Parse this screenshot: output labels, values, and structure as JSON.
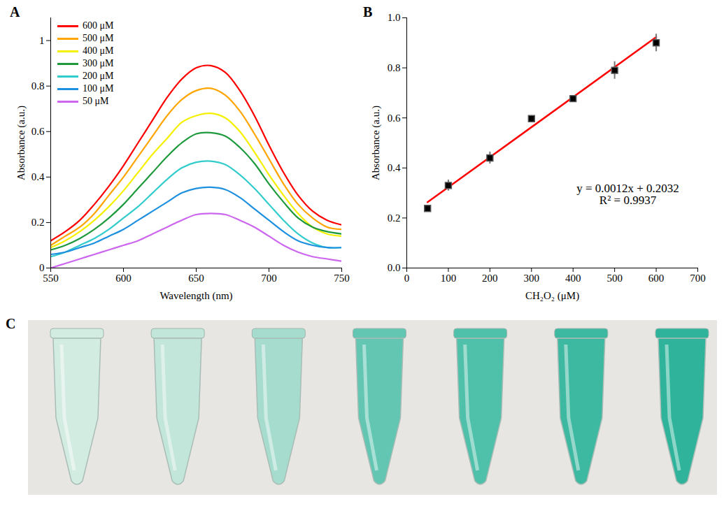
{
  "chart_data": [
    {
      "panel": "A",
      "type": "line",
      "x_label": "Wavelength (nm)",
      "y_label": "Absorbance (a.u.)",
      "x": [
        550,
        560,
        570,
        580,
        590,
        600,
        610,
        620,
        630,
        640,
        650,
        660,
        670,
        680,
        690,
        700,
        710,
        720,
        730,
        740,
        750
      ],
      "series": [
        {
          "name": "600 μM",
          "color": "#ff0000",
          "values": [
            0.12,
            0.16,
            0.21,
            0.28,
            0.36,
            0.45,
            0.55,
            0.65,
            0.75,
            0.83,
            0.88,
            0.89,
            0.86,
            0.78,
            0.67,
            0.54,
            0.42,
            0.32,
            0.25,
            0.21,
            0.19
          ]
        },
        {
          "name": "500 μM",
          "color": "#ffa500",
          "values": [
            0.1,
            0.14,
            0.18,
            0.24,
            0.32,
            0.4,
            0.49,
            0.58,
            0.67,
            0.74,
            0.78,
            0.79,
            0.76,
            0.69,
            0.59,
            0.48,
            0.37,
            0.28,
            0.22,
            0.18,
            0.17
          ]
        },
        {
          "name": "400 μM",
          "color": "#f5f000",
          "values": [
            0.09,
            0.12,
            0.16,
            0.21,
            0.27,
            0.34,
            0.42,
            0.5,
            0.57,
            0.64,
            0.67,
            0.68,
            0.66,
            0.6,
            0.51,
            0.41,
            0.32,
            0.24,
            0.18,
            0.15,
            0.14
          ]
        },
        {
          "name": "300 μM",
          "color": "#1e9a3c",
          "values": [
            0.08,
            0.1,
            0.13,
            0.17,
            0.22,
            0.28,
            0.35,
            0.42,
            0.49,
            0.55,
            0.59,
            0.595,
            0.58,
            0.53,
            0.46,
            0.37,
            0.29,
            0.22,
            0.18,
            0.16,
            0.15
          ]
        },
        {
          "name": "200 μM",
          "color": "#33cccc",
          "values": [
            0.05,
            0.07,
            0.1,
            0.13,
            0.17,
            0.22,
            0.27,
            0.33,
            0.39,
            0.44,
            0.465,
            0.47,
            0.455,
            0.41,
            0.35,
            0.28,
            0.21,
            0.15,
            0.11,
            0.09,
            0.09
          ]
        },
        {
          "name": "100 μM",
          "color": "#1e90e0",
          "values": [
            0.06,
            0.07,
            0.09,
            0.11,
            0.14,
            0.17,
            0.21,
            0.25,
            0.29,
            0.33,
            0.35,
            0.355,
            0.345,
            0.31,
            0.26,
            0.21,
            0.16,
            0.12,
            0.1,
            0.09,
            0.09
          ]
        },
        {
          "name": "50 μM",
          "color": "#cc66ee",
          "values": [
            0.0,
            0.02,
            0.04,
            0.06,
            0.08,
            0.1,
            0.12,
            0.15,
            0.18,
            0.21,
            0.235,
            0.24,
            0.235,
            0.21,
            0.18,
            0.14,
            0.1,
            0.07,
            0.05,
            0.04,
            0.03
          ]
        }
      ],
      "xlim": [
        550,
        750
      ],
      "xticks": [
        550,
        600,
        650,
        700,
        750
      ],
      "ylim": [
        0,
        1.1
      ],
      "yticks": [
        0,
        0.2,
        0.4,
        0.6,
        0.8,
        1
      ],
      "legend": "upper left"
    },
    {
      "panel": "B",
      "type": "scatter",
      "x_label": "CH₂O₂ (μM)",
      "y_label": "Absorbance (a.u.)",
      "x": [
        50,
        100,
        200,
        300,
        400,
        500,
        600
      ],
      "values": [
        0.238,
        0.33,
        0.44,
        0.597,
        0.677,
        0.79,
        0.9
      ],
      "errors": [
        0.012,
        0.022,
        0.024,
        0.008,
        0.006,
        0.035,
        0.035
      ],
      "color": "#000000",
      "marker": "square",
      "fit": {
        "type": "line",
        "color": "#ff0000",
        "x": [
          50,
          600
        ],
        "values": [
          0.263,
          0.923
        ]
      },
      "annotations": [
        "y = 0.0012x + 0.2032",
        "R² = 0.9937"
      ],
      "xlim": [
        0,
        700
      ],
      "xticks": [
        0,
        100,
        200,
        300,
        400,
        500,
        600,
        700
      ],
      "ylim": [
        0,
        1
      ],
      "yticks": [
        {
          "value": 0,
          "label": "0.0"
        },
        {
          "value": 0.2,
          "label": "0.2"
        },
        {
          "value": 0.4,
          "label": "0.4"
        },
        {
          "value": 0.6,
          "label": "0.6"
        },
        {
          "value": 0.8,
          "label": "0.8"
        },
        {
          "value": 1,
          "label": "1.0"
        }
      ]
    },
    {
      "panel": "C",
      "type": "image",
      "colors": [
        "#d3ece2",
        "#c2e6d9",
        "#a6dccd",
        "#62c6b2",
        "#4fc0aa",
        "#3eb9a1",
        "#2fb49b"
      ]
    }
  ]
}
